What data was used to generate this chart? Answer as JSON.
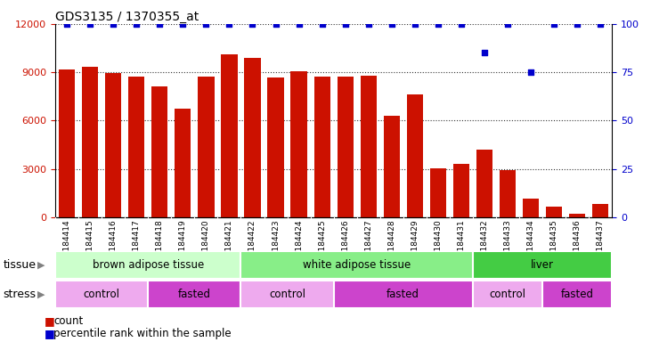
{
  "title": "GDS3135 / 1370355_at",
  "samples": [
    "GSM184414",
    "GSM184415",
    "GSM184416",
    "GSM184417",
    "GSM184418",
    "GSM184419",
    "GSM184420",
    "GSM184421",
    "GSM184422",
    "GSM184423",
    "GSM184424",
    "GSM184425",
    "GSM184426",
    "GSM184427",
    "GSM184428",
    "GSM184429",
    "GSM184430",
    "GSM184431",
    "GSM184432",
    "GSM184433",
    "GSM184434",
    "GSM184435",
    "GSM184436",
    "GSM184437"
  ],
  "bar_values": [
    9200,
    9350,
    8950,
    8750,
    8100,
    6750,
    8750,
    10100,
    9900,
    8700,
    9050,
    8750,
    8750,
    8800,
    6300,
    7600,
    3050,
    3300,
    4200,
    2900,
    1150,
    650,
    200,
    800
  ],
  "percentile_values": [
    100,
    100,
    100,
    100,
    100,
    100,
    100,
    100,
    100,
    100,
    100,
    100,
    100,
    100,
    100,
    100,
    100,
    100,
    85,
    100,
    75,
    100,
    100,
    100
  ],
  "bar_color": "#cc1100",
  "dot_color": "#0000cc",
  "ylim_left": [
    0,
    12000
  ],
  "ylim_right": [
    0,
    100
  ],
  "yticks_left": [
    0,
    3000,
    6000,
    9000,
    12000
  ],
  "yticks_right": [
    0,
    25,
    50,
    75,
    100
  ],
  "tissue_groups": [
    {
      "label": "brown adipose tissue",
      "start": 0,
      "end": 8,
      "color": "#ccffcc"
    },
    {
      "label": "white adipose tissue",
      "start": 8,
      "end": 18,
      "color": "#88ee88"
    },
    {
      "label": "liver",
      "start": 18,
      "end": 24,
      "color": "#44cc44"
    }
  ],
  "stress_groups": [
    {
      "label": "control",
      "start": 0,
      "end": 4,
      "color": "#eeaaee"
    },
    {
      "label": "fasted",
      "start": 4,
      "end": 8,
      "color": "#cc44cc"
    },
    {
      "label": "control",
      "start": 8,
      "end": 12,
      "color": "#eeaaee"
    },
    {
      "label": "fasted",
      "start": 12,
      "end": 18,
      "color": "#cc44cc"
    },
    {
      "label": "control",
      "start": 18,
      "end": 21,
      "color": "#eeaaee"
    },
    {
      "label": "fasted",
      "start": 21,
      "end": 24,
      "color": "#cc44cc"
    }
  ],
  "legend_count_color": "#cc1100",
  "legend_dot_color": "#0000cc",
  "tissue_label": "tissue",
  "stress_label": "stress",
  "bg_color": "#ffffff",
  "plot_bg": "#ffffff",
  "xtick_area_color": "#d8d8d8"
}
